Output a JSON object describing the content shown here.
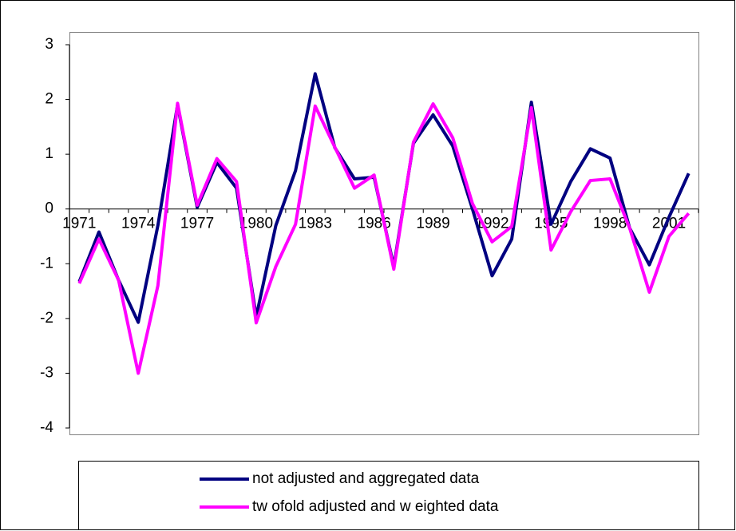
{
  "chart_data": {
    "type": "line",
    "categories": [
      "1971",
      null,
      null,
      "1974",
      null,
      null,
      "1977",
      null,
      null,
      "1980",
      null,
      null,
      "1983",
      null,
      null,
      "1986",
      null,
      null,
      "1989",
      null,
      null,
      "1992",
      null,
      null,
      "1995",
      null,
      null,
      "1998",
      null,
      null,
      "2001",
      null
    ],
    "series": [
      {
        "name": "not adjusted and aggregated data",
        "color": "#000080",
        "values": [
          -1.33,
          -0.42,
          -1.3,
          -2.07,
          -0.3,
          1.9,
          0.03,
          0.85,
          0.38,
          -1.97,
          -0.3,
          0.7,
          2.47,
          1.12,
          0.55,
          0.58,
          -1.05,
          1.2,
          1.72,
          1.15,
          0.0,
          -1.22,
          -0.55,
          1.95,
          -0.28,
          0.5,
          1.1,
          0.93,
          -0.35,
          -1.02,
          -0.15,
          0.65
        ]
      },
      {
        "name": "tw ofold adjusted and w eighted data",
        "color": "#ff00ff",
        "values": [
          -1.36,
          -0.55,
          -1.3,
          -3.0,
          -1.4,
          1.93,
          0.07,
          0.92,
          0.5,
          -2.08,
          -1.05,
          -0.28,
          1.88,
          1.13,
          0.38,
          0.62,
          -1.1,
          1.22,
          1.92,
          1.3,
          0.1,
          -0.6,
          -0.32,
          1.85,
          -0.75,
          -0.05,
          0.52,
          0.55,
          -0.35,
          -1.52,
          -0.5,
          -0.08
        ]
      }
    ],
    "ylim": [
      -4,
      3
    ],
    "yticks": [
      -4,
      -3,
      -2,
      -1,
      0,
      1,
      2,
      3
    ],
    "grid": false,
    "legend": "bottom"
  }
}
